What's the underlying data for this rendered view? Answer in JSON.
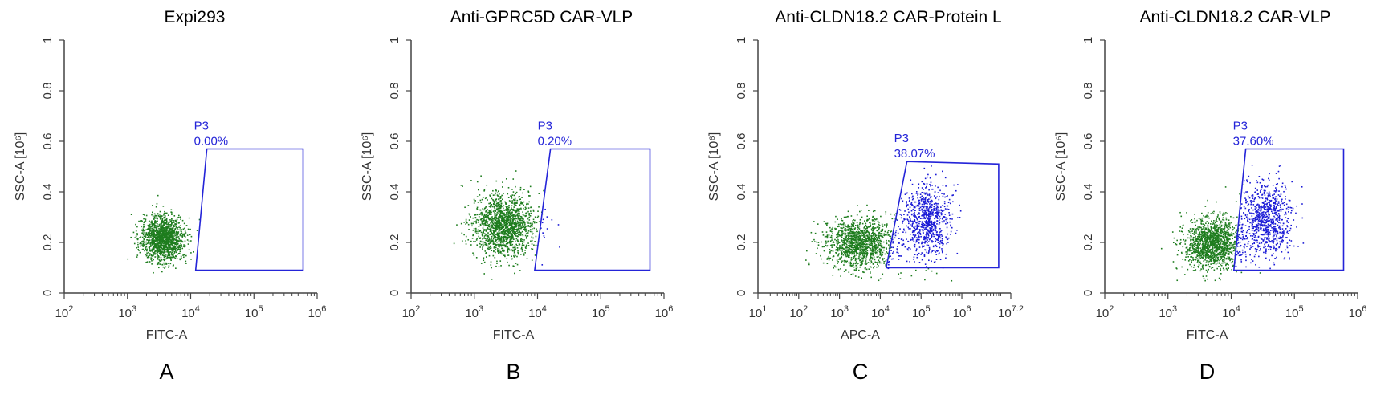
{
  "figure": {
    "colors": {
      "negative": "#1e7d1e",
      "positive": "#1a1ad6",
      "gate": "#2424d8",
      "axis": "#444444"
    }
  },
  "chart_data": [
    {
      "type": "scatter",
      "panel": "A",
      "title": "Expi293",
      "xlabel": "FITC-A",
      "ylabel": "SSC-A [10⁶]",
      "xscale": "log",
      "xlim": [
        100,
        1000000
      ],
      "ylim": [
        0,
        1
      ],
      "x_ticks": [
        {
          "base": "10",
          "exp": "2",
          "value": 100
        },
        {
          "base": "10",
          "exp": "3",
          "value": 1000
        },
        {
          "base": "10",
          "exp": "4",
          "value": 10000
        },
        {
          "base": "10",
          "exp": "5",
          "value": 100000
        },
        {
          "base": "10",
          "exp": "6",
          "value": 1000000
        }
      ],
      "y_ticks": [
        "0",
        "0.2",
        "0.4",
        "0.6",
        "0.8",
        "1"
      ],
      "gate": {
        "name": "P3",
        "percent": "0.00%",
        "polygon": [
          [
            12000,
            0.09
          ],
          [
            18000,
            0.57
          ],
          [
            600000,
            0.57
          ],
          [
            600000,
            0.09
          ]
        ]
      },
      "populations": [
        {
          "name": "negative",
          "center_log_x": 3.55,
          "center_y": 0.22,
          "sd_log_x": 0.17,
          "sd_y": 0.045,
          "count": 1400
        }
      ]
    },
    {
      "type": "scatter",
      "panel": "B",
      "title": "Anti-GPRC5D CAR-VLP",
      "xlabel": "FITC-A",
      "ylabel": "SSC-A [10⁶]",
      "xscale": "log",
      "xlim": [
        100,
        1000000
      ],
      "ylim": [
        0,
        1
      ],
      "x_ticks": [
        {
          "base": "10",
          "exp": "2",
          "value": 100
        },
        {
          "base": "10",
          "exp": "3",
          "value": 1000
        },
        {
          "base": "10",
          "exp": "4",
          "value": 10000
        },
        {
          "base": "10",
          "exp": "5",
          "value": 100000
        },
        {
          "base": "10",
          "exp": "6",
          "value": 1000000
        }
      ],
      "y_ticks": [
        "0",
        "0.2",
        "0.4",
        "0.6",
        "0.8",
        "1"
      ],
      "gate": {
        "name": "P3",
        "percent": "0.20%",
        "polygon": [
          [
            9000,
            0.09
          ],
          [
            16000,
            0.57
          ],
          [
            600000,
            0.57
          ],
          [
            600000,
            0.09
          ]
        ]
      },
      "populations": [
        {
          "name": "negative",
          "center_log_x": 3.45,
          "center_y": 0.27,
          "sd_log_x": 0.24,
          "sd_y": 0.06,
          "count": 1600
        },
        {
          "name": "positive",
          "center_log_x": 4.25,
          "center_y": 0.28,
          "sd_log_x": 0.1,
          "sd_y": 0.04,
          "count": 3
        }
      ]
    },
    {
      "type": "scatter",
      "panel": "C",
      "title": "Anti-CLDN18.2 CAR-Protein L",
      "xlabel": "APC-A",
      "ylabel": "SSC-A [10⁶]",
      "xscale": "log",
      "xlim": [
        10,
        15848932
      ],
      "ylim": [
        0,
        1
      ],
      "x_ticks": [
        {
          "base": "10",
          "exp": "1",
          "value": 10
        },
        {
          "base": "10",
          "exp": "2",
          "value": 100
        },
        {
          "base": "10",
          "exp": "3",
          "value": 1000
        },
        {
          "base": "10",
          "exp": "4",
          "value": 10000
        },
        {
          "base": "10",
          "exp": "5",
          "value": 100000
        },
        {
          "base": "10",
          "exp": "6",
          "value": 1000000
        },
        {
          "base": "10",
          "exp": "7.2",
          "value": 15848932
        }
      ],
      "y_ticks": [
        "0",
        "0.2",
        "0.4",
        "0.6",
        "0.8",
        "1"
      ],
      "gate": {
        "name": "P3",
        "percent": "38.07%",
        "polygon": [
          [
            14000,
            0.1
          ],
          [
            45000,
            0.52
          ],
          [
            8000000,
            0.51
          ],
          [
            8000000,
            0.1
          ]
        ]
      },
      "populations": [
        {
          "name": "negative",
          "center_log_x": 3.5,
          "center_y": 0.2,
          "sd_log_x": 0.42,
          "sd_y": 0.05,
          "count": 1300
        },
        {
          "name": "positive",
          "center_log_x": 5.15,
          "center_y": 0.29,
          "sd_log_x": 0.3,
          "sd_y": 0.075,
          "count": 800
        }
      ]
    },
    {
      "type": "scatter",
      "panel": "D",
      "title": "Anti-CLDN18.2 CAR-VLP",
      "xlabel": "FITC-A",
      "ylabel": "SSC-A [10⁶]",
      "xscale": "log",
      "xlim": [
        100,
        1000000
      ],
      "ylim": [
        0,
        1
      ],
      "x_ticks": [
        {
          "base": "10",
          "exp": "2",
          "value": 100
        },
        {
          "base": "10",
          "exp": "3",
          "value": 1000
        },
        {
          "base": "10",
          "exp": "4",
          "value": 10000
        },
        {
          "base": "10",
          "exp": "5",
          "value": 100000
        },
        {
          "base": "10",
          "exp": "6",
          "value": 1000000
        }
      ],
      "y_ticks": [
        "0",
        "0.2",
        "0.4",
        "0.6",
        "0.8",
        "1"
      ],
      "gate": {
        "name": "P3",
        "percent": "37.60%",
        "polygon": [
          [
            11000,
            0.09
          ],
          [
            17000,
            0.57
          ],
          [
            600000,
            0.57
          ],
          [
            600000,
            0.09
          ]
        ]
      },
      "populations": [
        {
          "name": "negative",
          "center_log_x": 3.7,
          "center_y": 0.2,
          "sd_log_x": 0.22,
          "sd_y": 0.05,
          "count": 1300
        },
        {
          "name": "positive",
          "center_log_x": 4.55,
          "center_y": 0.29,
          "sd_log_x": 0.2,
          "sd_y": 0.075,
          "count": 800
        }
      ]
    }
  ]
}
